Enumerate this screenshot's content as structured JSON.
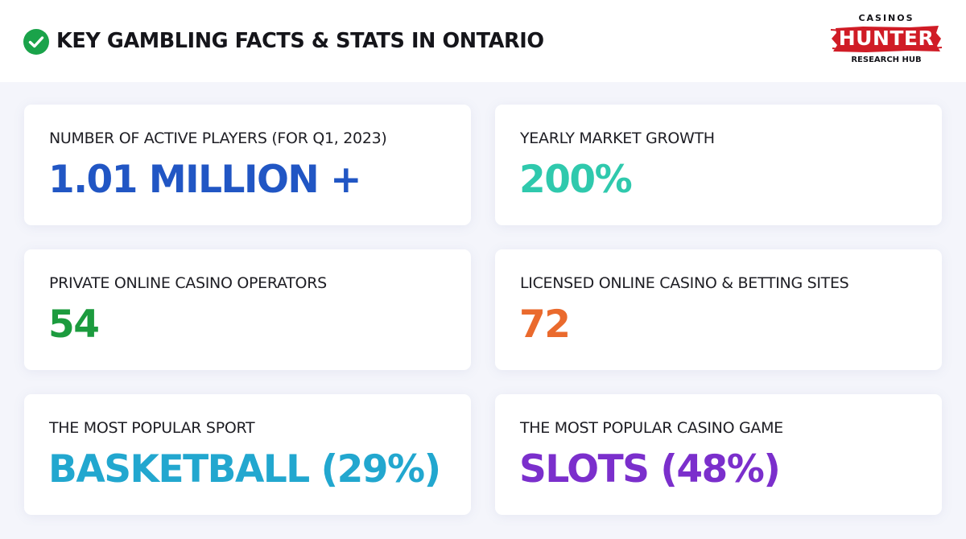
{
  "header": {
    "title": "KEY GAMBLING FACTS & STATS IN ONTARIO",
    "icon": "check-circle-icon",
    "icon_color": "#1aa34a"
  },
  "logo": {
    "top": "CASINOS",
    "main": "HUNTER",
    "bottom": "RESEARCH HUB",
    "color": "#d01c26"
  },
  "cards": [
    {
      "label": "NUMBER OF ACTIVE PLAYERS (FOR Q1, 2023)",
      "value": "1.01 MILLION +",
      "color": "#2156c4"
    },
    {
      "label": "YEARLY MARKET GROWTH",
      "value": "200%",
      "color": "#2fc9ad"
    },
    {
      "label": "PRIVATE ONLINE CASINO OPERATORS",
      "value": "54",
      "color": "#1c9b3e"
    },
    {
      "label": "LICENSED ONLINE CASINO & BETTING SITES",
      "value": "72",
      "color": "#ea6a2d"
    },
    {
      "label": "THE MOST POPULAR SPORT",
      "value": "BASKETBALL (29%)",
      "color": "#22a7cf"
    },
    {
      "label": "THE MOST POPULAR CASINO GAME",
      "value": "SLOTS (48%)",
      "color": "#7b2fcc"
    }
  ]
}
